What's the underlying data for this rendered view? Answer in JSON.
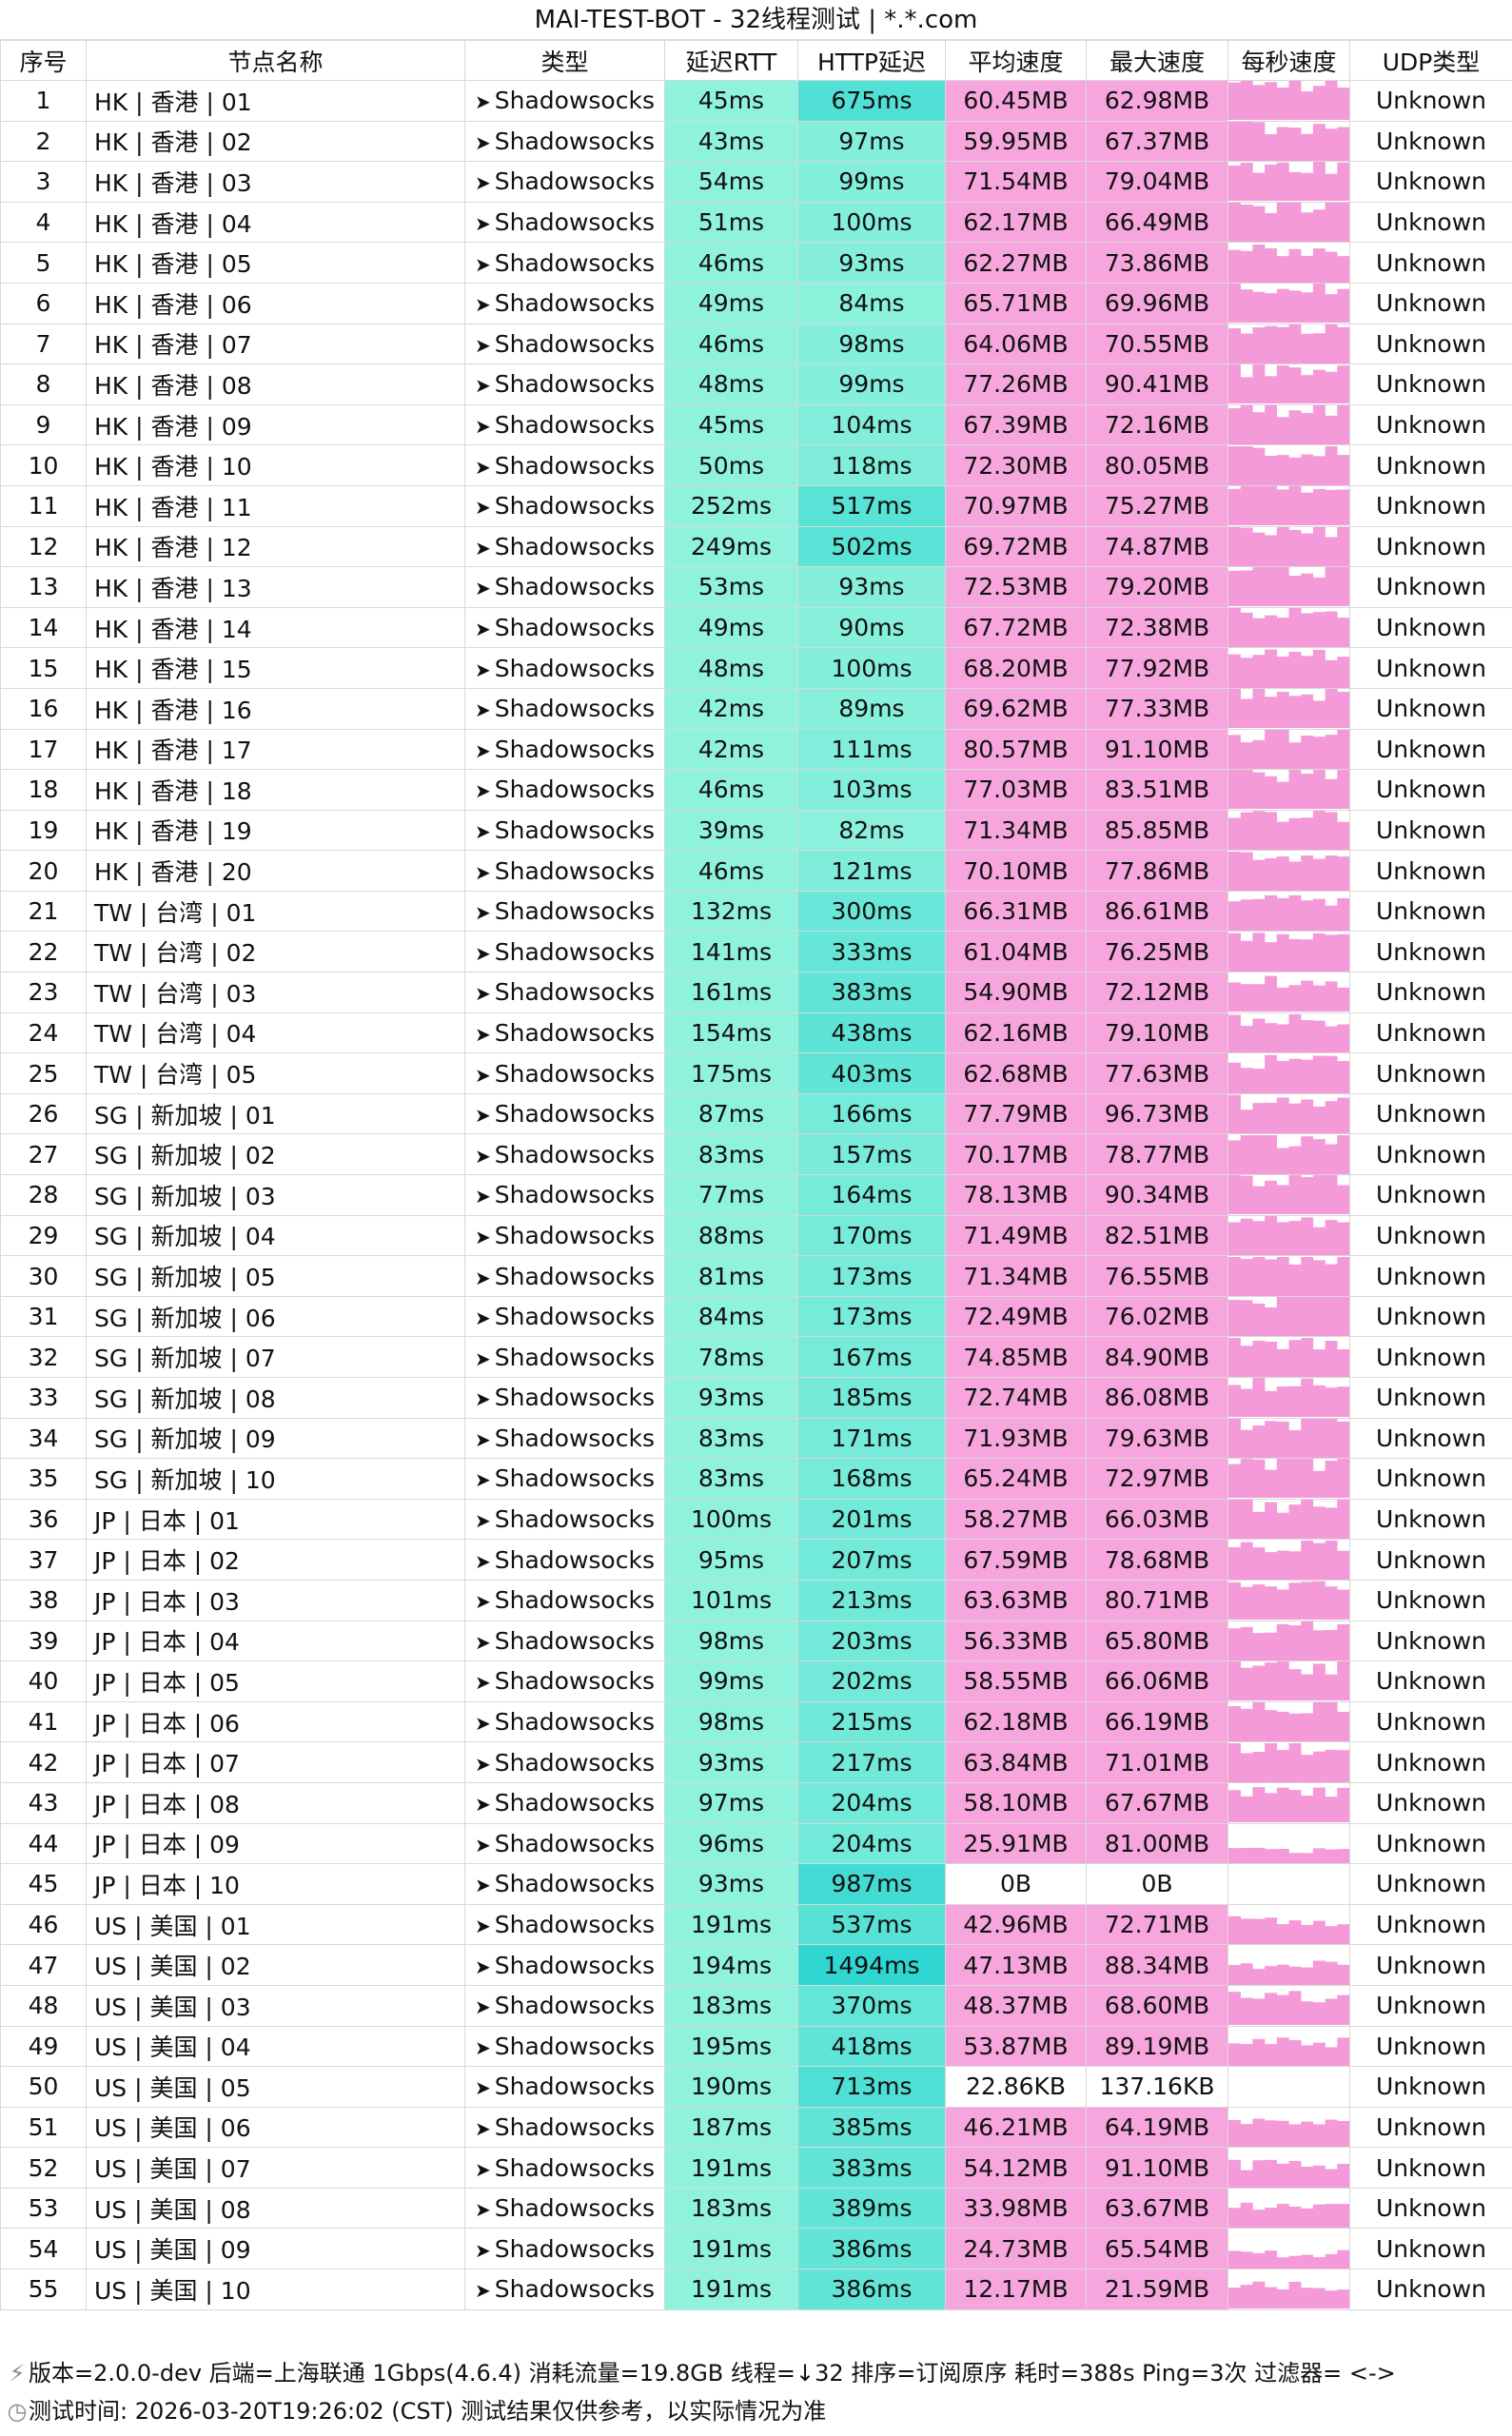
{
  "title": "MAI-TEST-BOT - 32线程测试 | *.*.com",
  "headers": [
    "序号",
    "节点名称",
    "类型",
    "延迟RTT",
    "HTTP延迟",
    "平均速度",
    "最大速度",
    "每秒速度",
    "UDP类型"
  ],
  "rows": [
    [
      "1",
      "HK | 香港 | 01",
      "Shadowsocks",
      "45ms",
      "675ms",
      "60.45MB",
      "62.98MB",
      "Unknown"
    ],
    [
      "2",
      "HK | 香港 | 02",
      "Shadowsocks",
      "43ms",
      "97ms",
      "59.95MB",
      "67.37MB",
      "Unknown"
    ],
    [
      "3",
      "HK | 香港 | 03",
      "Shadowsocks",
      "54ms",
      "99ms",
      "71.54MB",
      "79.04MB",
      "Unknown"
    ],
    [
      "4",
      "HK | 香港 | 04",
      "Shadowsocks",
      "51ms",
      "100ms",
      "62.17MB",
      "66.49MB",
      "Unknown"
    ],
    [
      "5",
      "HK | 香港 | 05",
      "Shadowsocks",
      "46ms",
      "93ms",
      "62.27MB",
      "73.86MB",
      "Unknown"
    ],
    [
      "6",
      "HK | 香港 | 06",
      "Shadowsocks",
      "49ms",
      "84ms",
      "65.71MB",
      "69.96MB",
      "Unknown"
    ],
    [
      "7",
      "HK | 香港 | 07",
      "Shadowsocks",
      "46ms",
      "98ms",
      "64.06MB",
      "70.55MB",
      "Unknown"
    ],
    [
      "8",
      "HK | 香港 | 08",
      "Shadowsocks",
      "48ms",
      "99ms",
      "77.26MB",
      "90.41MB",
      "Unknown"
    ],
    [
      "9",
      "HK | 香港 | 09",
      "Shadowsocks",
      "45ms",
      "104ms",
      "67.39MB",
      "72.16MB",
      "Unknown"
    ],
    [
      "10",
      "HK | 香港 | 10",
      "Shadowsocks",
      "50ms",
      "118ms",
      "72.30MB",
      "80.05MB",
      "Unknown"
    ],
    [
      "11",
      "HK | 香港 | 11",
      "Shadowsocks",
      "252ms",
      "517ms",
      "70.97MB",
      "75.27MB",
      "Unknown"
    ],
    [
      "12",
      "HK | 香港 | 12",
      "Shadowsocks",
      "249ms",
      "502ms",
      "69.72MB",
      "74.87MB",
      "Unknown"
    ],
    [
      "13",
      "HK | 香港 | 13",
      "Shadowsocks",
      "53ms",
      "93ms",
      "72.53MB",
      "79.20MB",
      "Unknown"
    ],
    [
      "14",
      "HK | 香港 | 14",
      "Shadowsocks",
      "49ms",
      "90ms",
      "67.72MB",
      "72.38MB",
      "Unknown"
    ],
    [
      "15",
      "HK | 香港 | 15",
      "Shadowsocks",
      "48ms",
      "100ms",
      "68.20MB",
      "77.92MB",
      "Unknown"
    ],
    [
      "16",
      "HK | 香港 | 16",
      "Shadowsocks",
      "42ms",
      "89ms",
      "69.62MB",
      "77.33MB",
      "Unknown"
    ],
    [
      "17",
      "HK | 香港 | 17",
      "Shadowsocks",
      "42ms",
      "111ms",
      "80.57MB",
      "91.10MB",
      "Unknown"
    ],
    [
      "18",
      "HK | 香港 | 18",
      "Shadowsocks",
      "46ms",
      "103ms",
      "77.03MB",
      "83.51MB",
      "Unknown"
    ],
    [
      "19",
      "HK | 香港 | 19",
      "Shadowsocks",
      "39ms",
      "82ms",
      "71.34MB",
      "85.85MB",
      "Unknown"
    ],
    [
      "20",
      "HK | 香港 | 20",
      "Shadowsocks",
      "46ms",
      "121ms",
      "70.10MB",
      "77.86MB",
      "Unknown"
    ],
    [
      "21",
      "TW | 台湾 | 01",
      "Shadowsocks",
      "132ms",
      "300ms",
      "66.31MB",
      "86.61MB",
      "Unknown"
    ],
    [
      "22",
      "TW | 台湾 | 02",
      "Shadowsocks",
      "141ms",
      "333ms",
      "61.04MB",
      "76.25MB",
      "Unknown"
    ],
    [
      "23",
      "TW | 台湾 | 03",
      "Shadowsocks",
      "161ms",
      "383ms",
      "54.90MB",
      "72.12MB",
      "Unknown"
    ],
    [
      "24",
      "TW | 台湾 | 04",
      "Shadowsocks",
      "154ms",
      "438ms",
      "62.16MB",
      "79.10MB",
      "Unknown"
    ],
    [
      "25",
      "TW | 台湾 | 05",
      "Shadowsocks",
      "175ms",
      "403ms",
      "62.68MB",
      "77.63MB",
      "Unknown"
    ],
    [
      "26",
      "SG | 新加坡 | 01",
      "Shadowsocks",
      "87ms",
      "166ms",
      "77.79MB",
      "96.73MB",
      "Unknown"
    ],
    [
      "27",
      "SG | 新加坡 | 02",
      "Shadowsocks",
      "83ms",
      "157ms",
      "70.17MB",
      "78.77MB",
      "Unknown"
    ],
    [
      "28",
      "SG | 新加坡 | 03",
      "Shadowsocks",
      "77ms",
      "164ms",
      "78.13MB",
      "90.34MB",
      "Unknown"
    ],
    [
      "29",
      "SG | 新加坡 | 04",
      "Shadowsocks",
      "88ms",
      "170ms",
      "71.49MB",
      "82.51MB",
      "Unknown"
    ],
    [
      "30",
      "SG | 新加坡 | 05",
      "Shadowsocks",
      "81ms",
      "173ms",
      "71.34MB",
      "76.55MB",
      "Unknown"
    ],
    [
      "31",
      "SG | 新加坡 | 06",
      "Shadowsocks",
      "84ms",
      "173ms",
      "72.49MB",
      "76.02MB",
      "Unknown"
    ],
    [
      "32",
      "SG | 新加坡 | 07",
      "Shadowsocks",
      "78ms",
      "167ms",
      "74.85MB",
      "84.90MB",
      "Unknown"
    ],
    [
      "33",
      "SG | 新加坡 | 08",
      "Shadowsocks",
      "93ms",
      "185ms",
      "72.74MB",
      "86.08MB",
      "Unknown"
    ],
    [
      "34",
      "SG | 新加坡 | 09",
      "Shadowsocks",
      "83ms",
      "171ms",
      "71.93MB",
      "79.63MB",
      "Unknown"
    ],
    [
      "35",
      "SG | 新加坡 | 10",
      "Shadowsocks",
      "83ms",
      "168ms",
      "65.24MB",
      "72.97MB",
      "Unknown"
    ],
    [
      "36",
      "JP | 日本 | 01",
      "Shadowsocks",
      "100ms",
      "201ms",
      "58.27MB",
      "66.03MB",
      "Unknown"
    ],
    [
      "37",
      "JP | 日本 | 02",
      "Shadowsocks",
      "95ms",
      "207ms",
      "67.59MB",
      "78.68MB",
      "Unknown"
    ],
    [
      "38",
      "JP | 日本 | 03",
      "Shadowsocks",
      "101ms",
      "213ms",
      "63.63MB",
      "80.71MB",
      "Unknown"
    ],
    [
      "39",
      "JP | 日本 | 04",
      "Shadowsocks",
      "98ms",
      "203ms",
      "56.33MB",
      "65.80MB",
      "Unknown"
    ],
    [
      "40",
      "JP | 日本 | 05",
      "Shadowsocks",
      "99ms",
      "202ms",
      "58.55MB",
      "66.06MB",
      "Unknown"
    ],
    [
      "41",
      "JP | 日本 | 06",
      "Shadowsocks",
      "98ms",
      "215ms",
      "62.18MB",
      "66.19MB",
      "Unknown"
    ],
    [
      "42",
      "JP | 日本 | 07",
      "Shadowsocks",
      "93ms",
      "217ms",
      "63.84MB",
      "71.01MB",
      "Unknown"
    ],
    [
      "43",
      "JP | 日本 | 08",
      "Shadowsocks",
      "97ms",
      "204ms",
      "58.10MB",
      "67.67MB",
      "Unknown"
    ],
    [
      "44",
      "JP | 日本 | 09",
      "Shadowsocks",
      "96ms",
      "204ms",
      "25.91MB",
      "81.00MB",
      "Unknown"
    ],
    [
      "45",
      "JP | 日本 | 10",
      "Shadowsocks",
      "93ms",
      "987ms",
      "0B",
      "0B",
      "Unknown"
    ],
    [
      "46",
      "US | 美国 | 01",
      "Shadowsocks",
      "191ms",
      "537ms",
      "42.96MB",
      "72.71MB",
      "Unknown"
    ],
    [
      "47",
      "US | 美国 | 02",
      "Shadowsocks",
      "194ms",
      "1494ms",
      "47.13MB",
      "88.34MB",
      "Unknown"
    ],
    [
      "48",
      "US | 美国 | 03",
      "Shadowsocks",
      "183ms",
      "370ms",
      "48.37MB",
      "68.60MB",
      "Unknown"
    ],
    [
      "49",
      "US | 美国 | 04",
      "Shadowsocks",
      "195ms",
      "418ms",
      "53.87MB",
      "89.19MB",
      "Unknown"
    ],
    [
      "50",
      "US | 美国 | 05",
      "Shadowsocks",
      "190ms",
      "713ms",
      "22.86KB",
      "137.16KB",
      "Unknown"
    ],
    [
      "51",
      "US | 美国 | 06",
      "Shadowsocks",
      "187ms",
      "385ms",
      "46.21MB",
      "64.19MB",
      "Unknown"
    ],
    [
      "52",
      "US | 美国 | 07",
      "Shadowsocks",
      "191ms",
      "383ms",
      "54.12MB",
      "91.10MB",
      "Unknown"
    ],
    [
      "53",
      "US | 美国 | 08",
      "Shadowsocks",
      "183ms",
      "389ms",
      "33.98MB",
      "63.67MB",
      "Unknown"
    ],
    [
      "54",
      "US | 美国 | 09",
      "Shadowsocks",
      "191ms",
      "386ms",
      "24.73MB",
      "65.54MB",
      "Unknown"
    ],
    [
      "55",
      "US | 美国 | 10",
      "Shadowsocks",
      "191ms",
      "386ms",
      "12.17MB",
      "21.59MB",
      "Unknown"
    ]
  ],
  "footer": {
    "line1": "版本=2.0.0-dev  后端=上海联通 1Gbps(4.6.4) 消耗流量=19.8GB  线程=↓32  排序=订阅原序  耗时=388s  Ping=3次  过滤器= <->",
    "line2": "测试时间: 2026-03-20T19:26:02 (CST)  测试结果仅供参考，以实际情况为准",
    "line1_icon": "network-icon",
    "line2_icon": "clock-icon"
  },
  "colors": {
    "latency_fill": "#8ff2dc",
    "http_low": "#8ff2dc",
    "http_high": "#3fdcd4",
    "speed_fill": "#f6a6dd",
    "sparkline": "#f49ad8"
  }
}
